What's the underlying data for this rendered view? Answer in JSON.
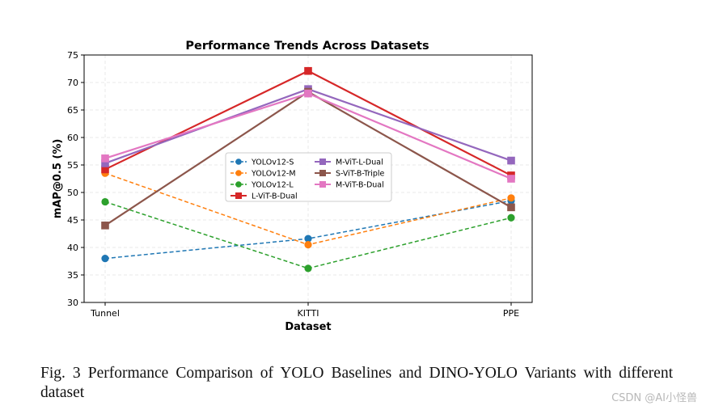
{
  "chart_data": {
    "type": "line",
    "title": "Performance Trends Across Datasets",
    "xlabel": "Dataset",
    "ylabel": "mAP@0.5 (%)",
    "categories": [
      "Tunnel",
      "KITTI",
      "PPE"
    ],
    "ylim": [
      30,
      75
    ],
    "yticks": [
      30,
      35,
      40,
      45,
      50,
      55,
      60,
      65,
      70,
      75
    ],
    "grid": true,
    "legend_position": "center",
    "series": [
      {
        "name": "YOLOv12-S",
        "values": [
          38.0,
          41.6,
          48.5
        ],
        "color": "#1f77b4",
        "linestyle": "dashed",
        "marker": "circle"
      },
      {
        "name": "YOLOv12-M",
        "values": [
          53.5,
          40.5,
          49.0
        ],
        "color": "#ff7f0e",
        "linestyle": "dashed",
        "marker": "circle"
      },
      {
        "name": "YOLOv12-L",
        "values": [
          48.3,
          36.2,
          45.4
        ],
        "color": "#2ca02c",
        "linestyle": "dashed",
        "marker": "circle"
      },
      {
        "name": "L-ViT-B-Dual",
        "values": [
          54.2,
          72.1,
          53.1
        ],
        "color": "#d62728",
        "linestyle": "solid",
        "marker": "square"
      },
      {
        "name": "M-ViT-L-Dual",
        "values": [
          55.3,
          68.8,
          55.8
        ],
        "color": "#9467bd",
        "linestyle": "solid",
        "marker": "square"
      },
      {
        "name": "S-ViT-B-Triple",
        "values": [
          44.0,
          68.3,
          47.3
        ],
        "color": "#8c564b",
        "linestyle": "solid",
        "marker": "square"
      },
      {
        "name": "M-ViT-B-Dual",
        "values": [
          56.2,
          68.0,
          52.5
        ],
        "color": "#e377c2",
        "linestyle": "solid",
        "marker": "square"
      }
    ]
  },
  "caption": "Fig. 3 Performance Comparison of YOLO Baselines and DINO-YOLO Variants with different dataset",
  "watermark": "CSDN @AI小怪兽"
}
